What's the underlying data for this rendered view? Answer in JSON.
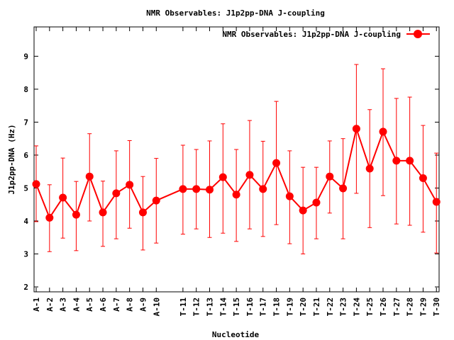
{
  "chart_data": {
    "type": "line",
    "title": "NMR Observables: J1p2pp-DNA J-coupling",
    "xlabel": "Nucleotide",
    "ylabel": "J1p2pp-DNA (Hz)",
    "ylim": [
      1.85,
      9.89
    ],
    "xlim": [
      0.84,
      31.2
    ],
    "yticks": [
      2,
      3,
      4,
      5,
      6,
      7,
      8,
      9
    ],
    "grid": false,
    "legend": {
      "placement": "top-right",
      "label": "NMR Observables: J1p2pp-DNA J-coupling"
    },
    "color": "#ff0000",
    "categories": [
      "A-1",
      "A-2",
      "A-3",
      "A-4",
      "A-5",
      "A-6",
      "A-7",
      "A-8",
      "A-9",
      "A-10",
      "T-11",
      "T-12",
      "T-13",
      "T-14",
      "T-15",
      "T-16",
      "T-17",
      "T-18",
      "T-19",
      "T-20",
      "T-21",
      "T-22",
      "T-23",
      "T-24",
      "T-25",
      "T-26",
      "T-27",
      "T-28",
      "T-29",
      "T-30"
    ],
    "x": [
      1,
      2,
      3,
      4,
      5,
      6,
      7,
      8,
      9,
      10,
      12,
      13,
      14,
      15,
      16,
      17,
      18,
      19,
      20,
      21,
      22,
      23,
      24,
      25,
      26,
      27,
      28,
      29,
      30,
      31
    ],
    "series": [
      {
        "name": "NMR Observables: J1p2pp-DNA J-coupling",
        "values": [
          5.12,
          4.1,
          4.71,
          4.19,
          5.35,
          4.26,
          4.84,
          5.1,
          4.26,
          4.62,
          4.97,
          4.97,
          4.95,
          5.33,
          4.8,
          5.4,
          4.97,
          5.76,
          4.75,
          4.32,
          4.56,
          5.35,
          4.99,
          6.8,
          5.59,
          6.71,
          5.83,
          5.83,
          5.3,
          4.58
        ],
        "err_high": [
          6.28,
          5.1,
          5.91,
          5.2,
          6.65,
          5.21,
          6.13,
          6.44,
          5.35,
          5.9,
          6.3,
          6.17,
          6.43,
          6.95,
          6.17,
          7.05,
          6.42,
          7.63,
          6.13,
          5.63,
          5.63,
          6.43,
          6.5,
          8.75,
          7.38,
          8.62,
          7.72,
          7.76,
          6.9,
          6.06
        ],
        "err_low": [
          3.98,
          3.07,
          3.48,
          3.1,
          4.0,
          3.23,
          3.46,
          3.78,
          3.12,
          3.33,
          3.6,
          3.76,
          3.5,
          3.63,
          3.38,
          3.76,
          3.53,
          3.89,
          3.31,
          3.0,
          3.46,
          4.24,
          3.46,
          4.84,
          3.8,
          4.77,
          3.91,
          3.87,
          3.66,
          3.03
        ]
      }
    ]
  }
}
